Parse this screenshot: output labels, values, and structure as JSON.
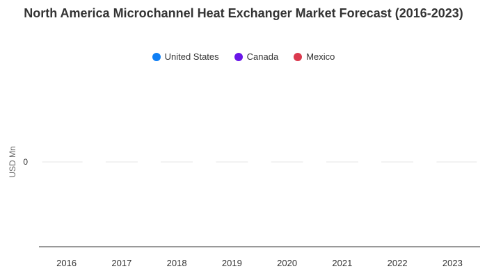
{
  "chart_data": {
    "type": "bar",
    "title": "North America Microchannel Heat Exchanger Market Forecast (2016-2023)",
    "xlabel": "",
    "ylabel": "USD Mn",
    "categories": [
      "2016",
      "2017",
      "2018",
      "2019",
      "2020",
      "2021",
      "2022",
      "2023"
    ],
    "y_ticks": [
      "0"
    ],
    "ylim": [
      -1,
      1
    ],
    "grid": true,
    "legend_position": "top-center",
    "series": [
      {
        "name": "United States",
        "color": "#0f7ff5",
        "values": [
          0,
          0,
          0,
          0,
          0,
          0,
          0,
          0
        ]
      },
      {
        "name": "Canada",
        "color": "#6a16e8",
        "values": [
          0,
          0,
          0,
          0,
          0,
          0,
          0,
          0
        ]
      },
      {
        "name": "Mexico",
        "color": "#db3a4e",
        "values": [
          0,
          0,
          0,
          0,
          0,
          0,
          0,
          0
        ]
      }
    ]
  }
}
